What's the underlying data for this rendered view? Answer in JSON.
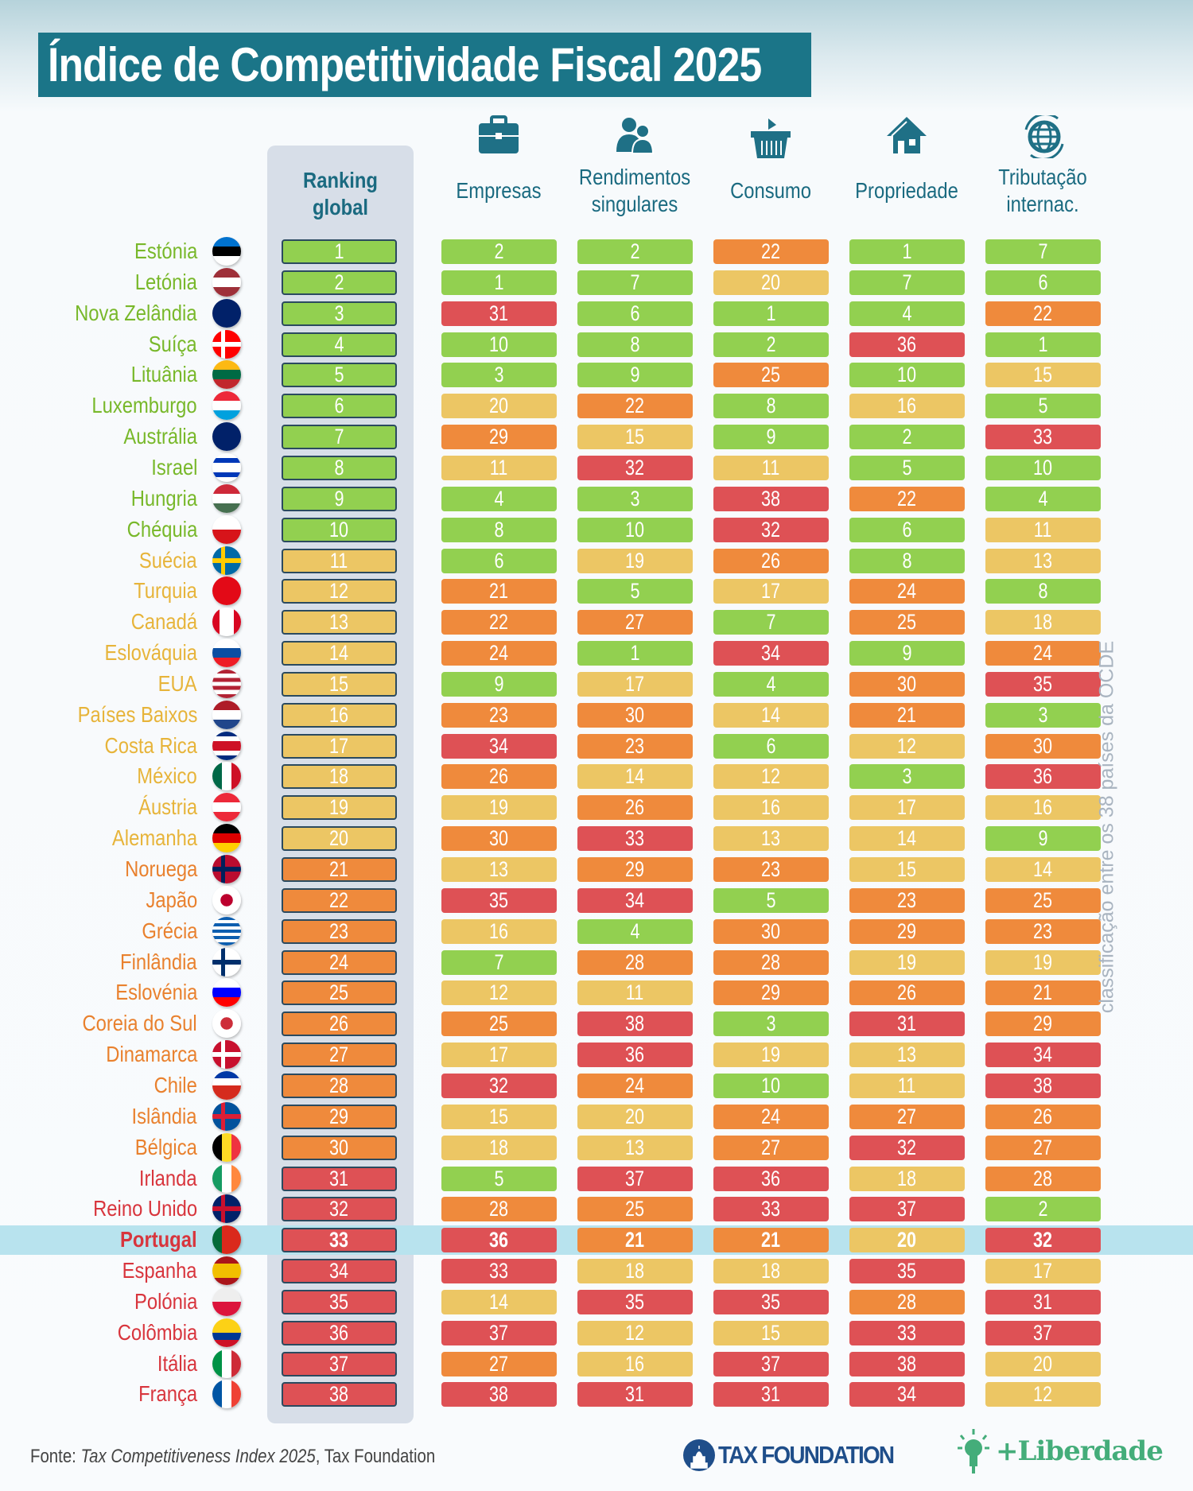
{
  "title": "Índice de Competitividade Fiscal 2025",
  "vertical_note": "classificação entre os 38 países da OCDE",
  "source_prefix": "Fonte: ",
  "source_title": "Tax Competitiveness Index 2025",
  "source_suffix": ", Tax Foundation",
  "logos": {
    "tax_foundation": "TAX FOUNDATION",
    "liberdade": "+Liberdade"
  },
  "colors": {
    "green": "#92d050",
    "yellow": "#ecc664",
    "orange": "#ef8a3c",
    "red": "#de5155",
    "name_green": "#78b82a",
    "name_yellow": "#e7b43a",
    "name_orange": "#e9812e",
    "name_red": "#d8353d",
    "header": "#1a6a80",
    "highlight": "#b8e3ee"
  },
  "chart_data": {
    "type": "table",
    "title": "Índice de Competitividade Fiscal 2025",
    "color_scale": [
      {
        "max": 10,
        "color": "green"
      },
      {
        "max": 20,
        "color": "yellow"
      },
      {
        "max": 30,
        "color": "orange"
      },
      {
        "max": 38,
        "color": "red"
      }
    ],
    "highlight_country": "Portugal",
    "columns": [
      {
        "label": "Ranking global",
        "icon": "none"
      },
      {
        "label": "Empresas",
        "icon": "briefcase-icon"
      },
      {
        "label": "Rendimentos singulares",
        "icon": "people-icon"
      },
      {
        "label": "Consumo",
        "icon": "basket-icon"
      },
      {
        "label": "Propriedade",
        "icon": "house-icon"
      },
      {
        "label": "Tributação internac.",
        "icon": "globe-icon"
      }
    ],
    "rows": [
      {
        "country": "Estónia",
        "flag": {
          "d": "h",
          "c": [
            "#0072ce",
            "#000000",
            "#ffffff"
          ]
        },
        "values": [
          1,
          2,
          2,
          22,
          1,
          7
        ]
      },
      {
        "country": "Letónia",
        "flag": {
          "d": "h",
          "c": [
            "#9e3039",
            "#ffffff",
            "#9e3039"
          ]
        },
        "values": [
          2,
          1,
          7,
          20,
          7,
          6
        ]
      },
      {
        "country": "Nova Zelândia",
        "flag": {
          "d": "h",
          "c": [
            "#012169",
            "#012169"
          ]
        },
        "values": [
          3,
          31,
          6,
          1,
          4,
          22
        ]
      },
      {
        "country": "Suíça",
        "flag": {
          "d": "x",
          "c": [
            "#ff0000",
            "#ffffff"
          ]
        },
        "values": [
          4,
          10,
          8,
          2,
          36,
          1
        ]
      },
      {
        "country": "Lituânia",
        "flag": {
          "d": "h",
          "c": [
            "#fdb913",
            "#006a44",
            "#c1272d"
          ]
        },
        "values": [
          5,
          3,
          9,
          25,
          10,
          15
        ]
      },
      {
        "country": "Luxemburgo",
        "flag": {
          "d": "h",
          "c": [
            "#ed2939",
            "#ffffff",
            "#00a1de"
          ]
        },
        "values": [
          6,
          20,
          22,
          8,
          16,
          5
        ]
      },
      {
        "country": "Austrália",
        "flag": {
          "d": "h",
          "c": [
            "#012169",
            "#012169"
          ]
        },
        "values": [
          7,
          29,
          15,
          9,
          2,
          33
        ]
      },
      {
        "country": "Israel",
        "flag": {
          "d": "h",
          "c": [
            "#ffffff",
            "#0038b8",
            "#ffffff",
            "#ffffff",
            "#0038b8",
            "#ffffff"
          ]
        },
        "values": [
          8,
          11,
          32,
          11,
          5,
          10
        ]
      },
      {
        "country": "Hungria",
        "flag": {
          "d": "h",
          "c": [
            "#ce2939",
            "#ffffff",
            "#477050"
          ]
        },
        "values": [
          9,
          4,
          3,
          38,
          22,
          4
        ]
      },
      {
        "country": "Chéquia",
        "flag": {
          "d": "h",
          "c": [
            "#ffffff",
            "#d7141a"
          ]
        },
        "values": [
          10,
          8,
          10,
          32,
          6,
          11
        ]
      },
      {
        "country": "Suécia",
        "flag": {
          "d": "x",
          "c": [
            "#006aa7",
            "#fecc00"
          ]
        },
        "values": [
          11,
          6,
          19,
          26,
          8,
          13
        ]
      },
      {
        "country": "Turquia",
        "flag": {
          "d": "h",
          "c": [
            "#e30a17",
            "#e30a17"
          ]
        },
        "values": [
          12,
          21,
          5,
          17,
          24,
          8
        ]
      },
      {
        "country": "Canadá",
        "flag": {
          "d": "v",
          "c": [
            "#d80621",
            "#ffffff",
            "#ffffff",
            "#d80621"
          ]
        },
        "values": [
          13,
          22,
          27,
          7,
          25,
          18
        ]
      },
      {
        "country": "Eslováquia",
        "flag": {
          "d": "h",
          "c": [
            "#ffffff",
            "#0b4ea2",
            "#ee1c25"
          ]
        },
        "values": [
          14,
          24,
          1,
          34,
          9,
          24
        ]
      },
      {
        "country": "EUA",
        "flag": {
          "d": "h",
          "c": [
            "#b22234",
            "#ffffff",
            "#b22234",
            "#ffffff",
            "#b22234",
            "#ffffff",
            "#b22234"
          ]
        },
        "values": [
          15,
          9,
          17,
          4,
          30,
          35
        ]
      },
      {
        "country": "Países Baixos",
        "flag": {
          "d": "h",
          "c": [
            "#ae1c28",
            "#ffffff",
            "#21468b"
          ]
        },
        "values": [
          16,
          23,
          30,
          14,
          21,
          3
        ]
      },
      {
        "country": "Costa Rica",
        "flag": {
          "d": "h",
          "c": [
            "#002b7f",
            "#ffffff",
            "#ce1126",
            "#ce1126",
            "#ffffff",
            "#002b7f"
          ]
        },
        "values": [
          17,
          34,
          23,
          6,
          12,
          30
        ]
      },
      {
        "country": "México",
        "flag": {
          "d": "v",
          "c": [
            "#006847",
            "#ffffff",
            "#ce1126"
          ]
        },
        "values": [
          18,
          26,
          14,
          12,
          3,
          36
        ]
      },
      {
        "country": "Áustria",
        "flag": {
          "d": "h",
          "c": [
            "#ed2939",
            "#ffffff",
            "#ed2939"
          ]
        },
        "values": [
          19,
          19,
          26,
          16,
          17,
          16
        ]
      },
      {
        "country": "Alemanha",
        "flag": {
          "d": "h",
          "c": [
            "#000000",
            "#dd0000",
            "#ffce00"
          ]
        },
        "values": [
          20,
          30,
          33,
          13,
          14,
          9
        ]
      },
      {
        "country": "Noruega",
        "flag": {
          "d": "x",
          "c": [
            "#ba0c2f",
            "#00205b"
          ]
        },
        "values": [
          21,
          13,
          29,
          23,
          15,
          14
        ]
      },
      {
        "country": "Japão",
        "flag": {
          "d": "o",
          "c": [
            "#ffffff",
            "#bc002d"
          ]
        },
        "values": [
          22,
          35,
          34,
          5,
          23,
          25
        ]
      },
      {
        "country": "Grécia",
        "flag": {
          "d": "h",
          "c": [
            "#0d5eaf",
            "#ffffff",
            "#0d5eaf",
            "#ffffff",
            "#0d5eaf",
            "#ffffff",
            "#0d5eaf",
            "#ffffff",
            "#0d5eaf"
          ]
        },
        "values": [
          23,
          16,
          4,
          30,
          29,
          23
        ]
      },
      {
        "country": "Finlândia",
        "flag": {
          "d": "x",
          "c": [
            "#ffffff",
            "#002f6c"
          ]
        },
        "values": [
          24,
          7,
          28,
          28,
          19,
          19
        ]
      },
      {
        "country": "Eslovénia",
        "flag": {
          "d": "h",
          "c": [
            "#ffffff",
            "#0000ff",
            "#ff0000"
          ]
        },
        "values": [
          25,
          12,
          11,
          29,
          26,
          21
        ]
      },
      {
        "country": "Coreia do Sul",
        "flag": {
          "d": "o",
          "c": [
            "#ffffff",
            "#cd2e3a"
          ]
        },
        "values": [
          26,
          25,
          38,
          3,
          31,
          29
        ]
      },
      {
        "country": "Dinamarca",
        "flag": {
          "d": "x",
          "c": [
            "#c8102e",
            "#ffffff"
          ]
        },
        "values": [
          27,
          17,
          36,
          19,
          13,
          34
        ]
      },
      {
        "country": "Chile",
        "flag": {
          "d": "h",
          "c": [
            "#0039a6",
            "#ffffff",
            "#d52b1e",
            "#d52b1e"
          ]
        },
        "values": [
          28,
          32,
          24,
          10,
          11,
          38
        ]
      },
      {
        "country": "Islândia",
        "flag": {
          "d": "x",
          "c": [
            "#02529c",
            "#dc1e35"
          ]
        },
        "values": [
          29,
          15,
          20,
          24,
          27,
          26
        ]
      },
      {
        "country": "Bélgica",
        "flag": {
          "d": "v",
          "c": [
            "#000000",
            "#fdda24",
            "#ef3340"
          ]
        },
        "values": [
          30,
          18,
          13,
          27,
          32,
          27
        ]
      },
      {
        "country": "Irlanda",
        "flag": {
          "d": "v",
          "c": [
            "#169b62",
            "#ffffff",
            "#ff883e"
          ]
        },
        "values": [
          31,
          5,
          37,
          36,
          18,
          28
        ]
      },
      {
        "country": "Reino Unido",
        "flag": {
          "d": "x",
          "c": [
            "#012169",
            "#c8102e"
          ]
        },
        "values": [
          32,
          28,
          25,
          33,
          37,
          2
        ]
      },
      {
        "country": "Portugal",
        "flag": {
          "d": "v",
          "c": [
            "#046a38",
            "#da291c",
            "#da291c"
          ]
        },
        "values": [
          33,
          36,
          21,
          21,
          20,
          32
        ]
      },
      {
        "country": "Espanha",
        "flag": {
          "d": "h",
          "c": [
            "#aa151b",
            "#f1bf00",
            "#f1bf00",
            "#aa151b"
          ]
        },
        "values": [
          34,
          33,
          18,
          18,
          35,
          17
        ]
      },
      {
        "country": "Polónia",
        "flag": {
          "d": "h",
          "c": [
            "#eeeeee",
            "#dc143c"
          ]
        },
        "values": [
          35,
          14,
          35,
          35,
          28,
          31
        ]
      },
      {
        "country": "Colômbia",
        "flag": {
          "d": "h",
          "c": [
            "#fcd116",
            "#fcd116",
            "#003893",
            "#ce1126"
          ]
        },
        "values": [
          36,
          37,
          12,
          15,
          33,
          37
        ]
      },
      {
        "country": "Itália",
        "flag": {
          "d": "v",
          "c": [
            "#009246",
            "#ffffff",
            "#ce2b37"
          ]
        },
        "values": [
          37,
          27,
          16,
          37,
          38,
          20
        ]
      },
      {
        "country": "França",
        "flag": {
          "d": "v",
          "c": [
            "#0055a4",
            "#ffffff",
            "#ef4135"
          ]
        },
        "values": [
          38,
          38,
          31,
          31,
          34,
          12
        ]
      }
    ]
  }
}
